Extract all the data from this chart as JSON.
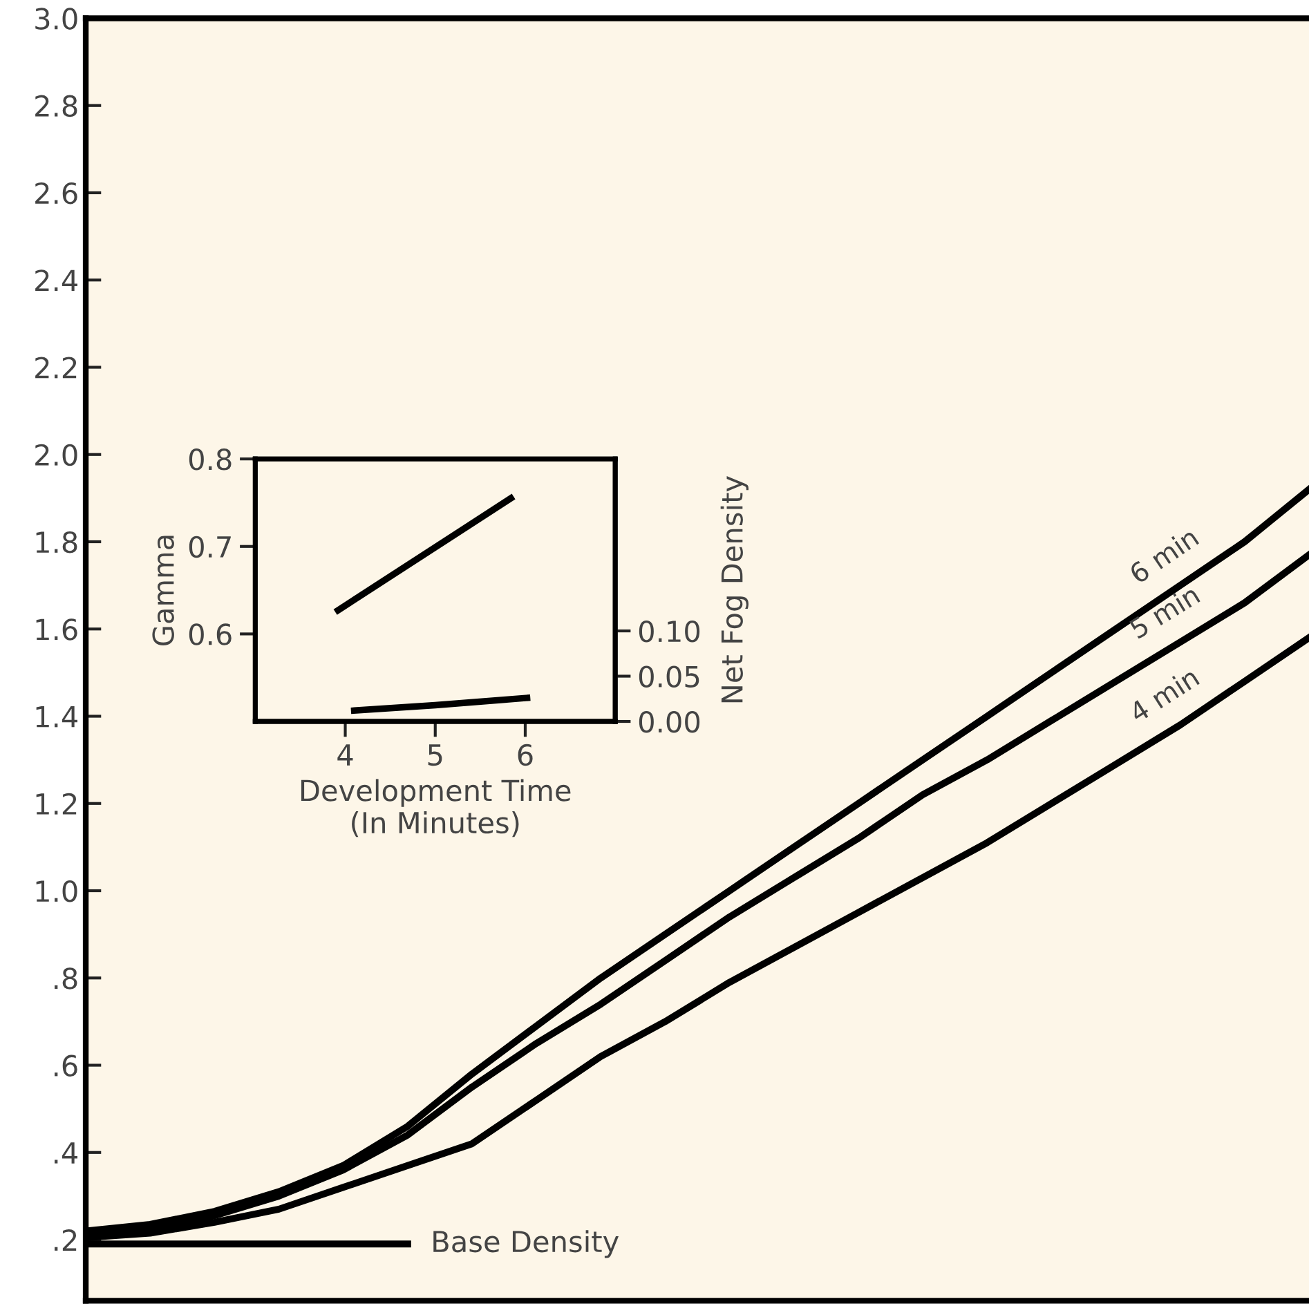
{
  "chart_data": [
    {
      "type": "line",
      "categories": [
        null,
        null,
        null,
        null,
        null,
        null,
        null,
        null,
        null,
        null,
        null,
        null,
        null,
        null,
        null,
        null,
        null,
        null,
        null,
        null
      ],
      "ylim": [
        0.06,
        3.0
      ],
      "yticks": [
        {
          "value": 0.2,
          "label": ".2"
        },
        {
          "value": 0.4,
          "label": ".4"
        },
        {
          "value": 0.6,
          "label": ".6"
        },
        {
          "value": 0.8,
          "label": ".8"
        },
        {
          "value": 1.0,
          "label": "1.0"
        },
        {
          "value": 1.2,
          "label": "1.2"
        },
        {
          "value": 1.4,
          "label": "1.4"
        },
        {
          "value": 1.6,
          "label": "1.6"
        },
        {
          "value": 1.8,
          "label": "1.8"
        },
        {
          "value": 2.0,
          "label": "2.0"
        },
        {
          "value": 2.2,
          "label": "2.2"
        },
        {
          "value": 2.4,
          "label": "2.4"
        },
        {
          "value": 2.6,
          "label": "2.6"
        },
        {
          "value": 2.8,
          "label": "2.8"
        },
        {
          "value": 3.0,
          "label": "3.0"
        }
      ],
      "tick_labels": "y",
      "grid": false,
      "legend": false,
      "marker": "none",
      "line_style": "solid",
      "series": [
        {
          "name": "6 min",
          "color": "#000000",
          "values": [
            0.22,
            0.235,
            0.265,
            0.31,
            0.37,
            0.46,
            0.58,
            0.69,
            0.8,
            0.9,
            1.0,
            1.1,
            1.2,
            1.3,
            1.4,
            1.5,
            1.6,
            1.7,
            1.8,
            1.92
          ]
        },
        {
          "name": "5 min",
          "color": "#000000",
          "values": [
            0.21,
            0.225,
            0.255,
            0.3,
            0.36,
            0.44,
            0.55,
            0.65,
            0.74,
            0.84,
            0.94,
            1.03,
            1.12,
            1.22,
            1.3,
            1.39,
            1.48,
            1.57,
            1.66,
            1.77
          ]
        },
        {
          "name": "4 min",
          "color": "#000000",
          "values": [
            0.205,
            0.215,
            0.24,
            0.27,
            0.32,
            0.37,
            0.42,
            0.52,
            0.62,
            0.7,
            0.79,
            0.87,
            0.95,
            1.03,
            1.11,
            1.2,
            1.29,
            1.38,
            1.48,
            1.58
          ]
        },
        {
          "name": "Base Density",
          "color": "#000000",
          "values": [
            0.19,
            0.19,
            0.19,
            0.19,
            0.19,
            0.19,
            null,
            null,
            null,
            null,
            null,
            null,
            null,
            null,
            null,
            null,
            null,
            null,
            null,
            null
          ]
        }
      ]
    },
    {
      "type": "line",
      "xlabel": "Development Time\n(In Minutes)",
      "ylabel": "Gamma",
      "y2label": "Net Fog Density",
      "xlim": [
        3.0,
        7.0
      ],
      "xticks": [
        4,
        5,
        6
      ],
      "ylim": [
        0.5,
        0.8
      ],
      "yticks": [
        0.6,
        0.7,
        0.8
      ],
      "y2lim": [
        0.0,
        0.29
      ],
      "y2ticks": [
        {
          "value": 0.0,
          "label": "0.00"
        },
        {
          "value": 0.05,
          "label": "0.05"
        },
        {
          "value": 0.1,
          "label": "0.10"
        }
      ],
      "grid": false,
      "legend": false,
      "marker": "none",
      "line_style": "solid",
      "series": [
        {
          "color": "#000000",
          "x": [
            3.92,
            5.84
          ],
          "values": [
            0.627,
            0.755
          ]
        },
        {
          "color": "#000000",
          "axis": "y2",
          "x": [
            4.1,
            5.0,
            6.02
          ],
          "values": [
            0.012,
            0.018,
            0.026
          ]
        }
      ]
    }
  ]
}
